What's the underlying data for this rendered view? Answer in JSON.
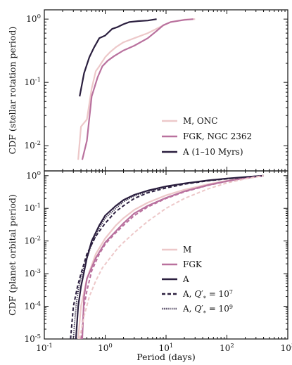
{
  "chart_data": [
    {
      "type": "line",
      "ylabel": "CDF (stellar rotation period)",
      "xscale": "log",
      "yscale": "log",
      "xlim": [
        0.1,
        1000
      ],
      "ylim": [
        0.004,
        1.4
      ],
      "yticks": [
        0.01,
        0.1,
        1
      ],
      "ytick_labels": [
        "10^-2",
        "10^-1",
        "10^0"
      ],
      "grid": false,
      "legend_position": "lower-right",
      "series": [
        {
          "name": "M, ONC",
          "color": "#edc8c9",
          "style": "solid",
          "x": [
            0.36,
            0.4,
            0.5,
            0.6,
            0.7,
            0.8,
            1.0,
            1.2,
            1.5,
            2.0,
            3.0,
            5.0,
            8.0,
            12,
            20,
            30
          ],
          "y": [
            0.006,
            0.02,
            0.026,
            0.08,
            0.15,
            0.18,
            0.25,
            0.3,
            0.36,
            0.43,
            0.5,
            0.6,
            0.75,
            0.9,
            0.98,
            1.0
          ]
        },
        {
          "name": "FGK, NGC 2362",
          "color": "#b9719e",
          "style": "solid",
          "x": [
            0.42,
            0.5,
            0.6,
            0.75,
            0.9,
            1.1,
            1.4,
            2.0,
            3.0,
            5.0,
            7.0,
            9.0,
            12,
            20,
            28
          ],
          "y": [
            0.006,
            0.012,
            0.06,
            0.12,
            0.18,
            0.22,
            0.26,
            0.32,
            0.38,
            0.5,
            0.65,
            0.8,
            0.9,
            0.97,
            1.0
          ]
        },
        {
          "name": "A (1–10 Myrs)",
          "color": "#2b1f3f",
          "style": "solid",
          "x": [
            0.38,
            0.45,
            0.55,
            0.65,
            0.8,
            1.0,
            1.3,
            1.6,
            2.0,
            2.5,
            3.5,
            5.0,
            7.0
          ],
          "y": [
            0.06,
            0.14,
            0.25,
            0.35,
            0.5,
            0.55,
            0.7,
            0.75,
            0.83,
            0.9,
            0.93,
            0.95,
            1.0
          ]
        }
      ]
    },
    {
      "type": "line",
      "xlabel": "Period (days)",
      "ylabel": "CDF (planet orbital period)",
      "xscale": "log",
      "yscale": "log",
      "xlim": [
        0.1,
        1000
      ],
      "ylim": [
        1e-05,
        1.4
      ],
      "xticks": [
        0.1,
        1,
        10,
        100,
        1000
      ],
      "xtick_labels": [
        "10^-1",
        "10^0",
        "10^1",
        "10^2",
        "10^3"
      ],
      "yticks": [
        1e-05,
        0.0001,
        0.001,
        0.01,
        0.1,
        1
      ],
      "ytick_labels": [
        "10^-5",
        "10^-4",
        "10^-3",
        "10^-2",
        "10^-1",
        "10^0"
      ],
      "grid": false,
      "legend_position": "lower-right",
      "series": [
        {
          "name": "M",
          "color": "#edc8c9",
          "style": "solid",
          "x": [
            0.36,
            0.4,
            0.5,
            0.7,
            1.0,
            1.5,
            2.0,
            3.0,
            5.0,
            10,
            20,
            50,
            100,
            200,
            400
          ],
          "y": [
            1e-05,
            0.0001,
            0.0007,
            0.004,
            0.012,
            0.03,
            0.05,
            0.09,
            0.15,
            0.25,
            0.37,
            0.55,
            0.7,
            0.85,
            1.0
          ]
        },
        {
          "name": "FGK",
          "color": "#b9719e",
          "style": "solid",
          "x": [
            0.42,
            0.45,
            0.5,
            0.7,
            1.0,
            1.5,
            2.0,
            3.0,
            5.0,
            10,
            20,
            50,
            100,
            200,
            400
          ],
          "y": [
            1e-05,
            0.0002,
            0.0007,
            0.003,
            0.009,
            0.02,
            0.035,
            0.07,
            0.12,
            0.21,
            0.33,
            0.52,
            0.68,
            0.84,
            1.0
          ]
        },
        {
          "name": "A",
          "color": "#2b1f3f",
          "style": "solid",
          "x": [
            0.33,
            0.36,
            0.4,
            0.5,
            0.6,
            0.8,
            1.0,
            1.5,
            2.0,
            3.0,
            5.0,
            10,
            20,
            50,
            100,
            200,
            400
          ],
          "y": [
            1e-05,
            0.0001,
            0.0004,
            0.003,
            0.01,
            0.03,
            0.06,
            0.12,
            0.18,
            0.26,
            0.35,
            0.47,
            0.58,
            0.72,
            0.82,
            0.91,
            1.0
          ]
        },
        {
          "name": "A, Q'_* = 10^7",
          "color": "#2b1f3f",
          "style": "dashed",
          "x": [
            0.27,
            0.3,
            0.35,
            0.4,
            0.5,
            0.7,
            1.0,
            1.5,
            2.0,
            3.0,
            5.0,
            10,
            20,
            50,
            100,
            200,
            400
          ],
          "y": [
            1e-05,
            0.0001,
            0.0004,
            0.001,
            0.004,
            0.014,
            0.035,
            0.08,
            0.12,
            0.2,
            0.3,
            0.42,
            0.55,
            0.7,
            0.8,
            0.9,
            1.0
          ]
        },
        {
          "name": "A, Q'_* = 10^9",
          "color": "#2b1f3f",
          "style": "dotted",
          "x": [
            0.3,
            0.33,
            0.36,
            0.4,
            0.5,
            0.6,
            0.8,
            1.0,
            1.5,
            2.0,
            3.0,
            5.0,
            10,
            20,
            50,
            100,
            200,
            400
          ],
          "y": [
            1e-05,
            0.0001,
            0.0003,
            0.0008,
            0.003,
            0.008,
            0.025,
            0.05,
            0.1,
            0.16,
            0.24,
            0.33,
            0.46,
            0.57,
            0.71,
            0.81,
            0.9,
            1.0
          ]
        },
        {
          "name": "",
          "color": "#b9719e",
          "style": "dashed",
          "x": [
            0.4,
            0.45,
            0.5,
            0.6,
            0.8,
            1.0,
            1.5,
            2.0,
            3.0,
            5.0,
            10,
            20,
            50,
            100,
            200,
            400
          ],
          "y": [
            1e-05,
            0.0001,
            0.0003,
            0.0012,
            0.004,
            0.008,
            0.018,
            0.03,
            0.06,
            0.11,
            0.2,
            0.32,
            0.51,
            0.67,
            0.83,
            1.0
          ]
        },
        {
          "name": "",
          "color": "#edc8c9",
          "style": "dashed",
          "x": [
            0.38,
            0.45,
            0.55,
            0.7,
            0.9,
            1.2,
            1.6,
            2.0,
            3.0,
            5.0,
            10,
            20,
            50,
            100,
            200,
            400
          ],
          "y": [
            1e-05,
            5e-05,
            0.0002,
            0.0006,
            0.0015,
            0.003,
            0.006,
            0.009,
            0.018,
            0.04,
            0.1,
            0.2,
            0.4,
            0.6,
            0.8,
            1.0
          ]
        }
      ]
    }
  ]
}
